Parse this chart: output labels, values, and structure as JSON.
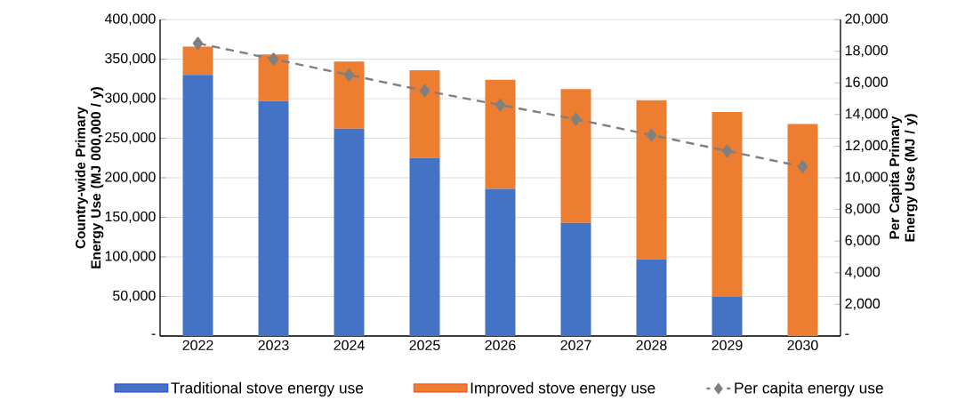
{
  "chart_data": {
    "type": "bar",
    "stacked": true,
    "categories": [
      "2022",
      "2023",
      "2024",
      "2025",
      "2026",
      "2027",
      "2028",
      "2029",
      "2030"
    ],
    "series": [
      {
        "name": "Traditional stove energy use",
        "color": "#4472c4",
        "values": [
          330000,
          297000,
          262000,
          225000,
          186000,
          143000,
          97000,
          50000,
          0
        ]
      },
      {
        "name": "Improved stove energy use",
        "color": "#ed7d31",
        "values": [
          36000,
          59000,
          85000,
          111000,
          138000,
          169000,
          201000,
          233000,
          268000
        ]
      },
      {
        "name": "Per capita energy use",
        "type": "line",
        "axis": "y2",
        "color": "#808080",
        "marker": "diamond",
        "line_style": "dashed",
        "values": [
          18500,
          17500,
          16500,
          15500,
          14600,
          13700,
          12700,
          11700,
          10700
        ]
      }
    ],
    "ylabel": "Country-wide Primary Energy Use (MJ 000,000 / y)",
    "y2label": "Per Capita Primary Energy Use (MJ / y)",
    "ylim": [
      0,
      400000
    ],
    "yticks": [
      {
        "value": 0,
        "label": "-"
      },
      {
        "value": 50000,
        "label": "50,000"
      },
      {
        "value": 100000,
        "label": "100,000"
      },
      {
        "value": 150000,
        "label": "150,000"
      },
      {
        "value": 200000,
        "label": "200,000"
      },
      {
        "value": 250000,
        "label": "250,000"
      },
      {
        "value": 300000,
        "label": "300,000"
      },
      {
        "value": 350000,
        "label": "350,000"
      },
      {
        "value": 400000,
        "label": "400,000"
      }
    ],
    "y2lim": [
      0,
      20000
    ],
    "y2ticks": [
      {
        "value": 0,
        "label": "-"
      },
      {
        "value": 2000,
        "label": "2,000"
      },
      {
        "value": 4000,
        "label": "4,000"
      },
      {
        "value": 6000,
        "label": "6,000"
      },
      {
        "value": 8000,
        "label": "8,000"
      },
      {
        "value": 10000,
        "label": "10,000"
      },
      {
        "value": 12000,
        "label": "12,000"
      },
      {
        "value": 14000,
        "label": "14,000"
      },
      {
        "value": 16000,
        "label": "16,000"
      },
      {
        "value": 18000,
        "label": "18,000"
      },
      {
        "value": 20000,
        "label": "20,000"
      }
    ],
    "grid": "y",
    "legend": "bottom"
  }
}
